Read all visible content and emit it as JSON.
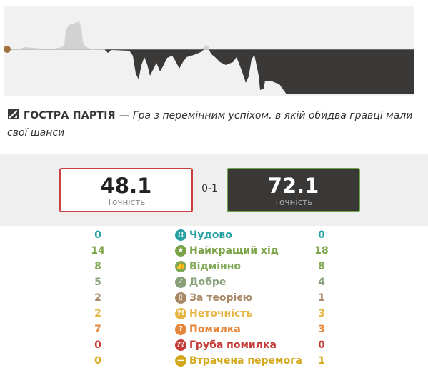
{
  "game": {
    "title": "ГОСТРА ПАРТІЯ",
    "separator": "—",
    "description": "Гра з перемінним успіхом, в якій обидва гравці мали свої шанси"
  },
  "accuracy": {
    "white": {
      "value": "48.1",
      "label": "Точність"
    },
    "black": {
      "value": "72.1",
      "label": "Точність"
    },
    "score": "0-1"
  },
  "stats": [
    {
      "name": "Чудово",
      "white": "0",
      "black": "0",
      "color": "#26a2a4",
      "icon": "brilliant-icon",
      "glyph": "!!"
    },
    {
      "name": "Найкращий хід",
      "white": "14",
      "black": "18",
      "color": "#7aa246",
      "icon": "best-move-icon",
      "glyph": "★"
    },
    {
      "name": "Відмінно",
      "white": "8",
      "black": "8",
      "color": "#80a855",
      "icon": "excellent-icon",
      "glyph": "👍"
    },
    {
      "name": "Добре",
      "white": "5",
      "black": "4",
      "color": "#88a07a",
      "icon": "good-icon",
      "glyph": "✓"
    },
    {
      "name": "За теорією",
      "white": "2",
      "black": "1",
      "color": "#a88865",
      "icon": "book-icon",
      "glyph": "▯"
    },
    {
      "name": "Неточність",
      "white": "2",
      "black": "3",
      "color": "#e7b544",
      "icon": "inaccuracy-icon",
      "glyph": "?!"
    },
    {
      "name": "Помилка",
      "white": "7",
      "black": "3",
      "color": "#e5863a",
      "icon": "mistake-icon",
      "glyph": "?"
    },
    {
      "name": "Груба помилка",
      "white": "0",
      "black": "0",
      "color": "#c33a36",
      "icon": "blunder-icon",
      "glyph": "??"
    },
    {
      "name": "Втрачена перемога",
      "white": "0",
      "black": "1",
      "color": "#d4a81a",
      "icon": "missed-win-icon",
      "glyph": "—"
    }
  ],
  "colors": {
    "graph_background": "#f1f1f1",
    "graph_black_area": "#3b3937",
    "graph_white_area": "#d2d2d2",
    "white_border": "#c94040",
    "black_border": "#6da64a"
  }
}
